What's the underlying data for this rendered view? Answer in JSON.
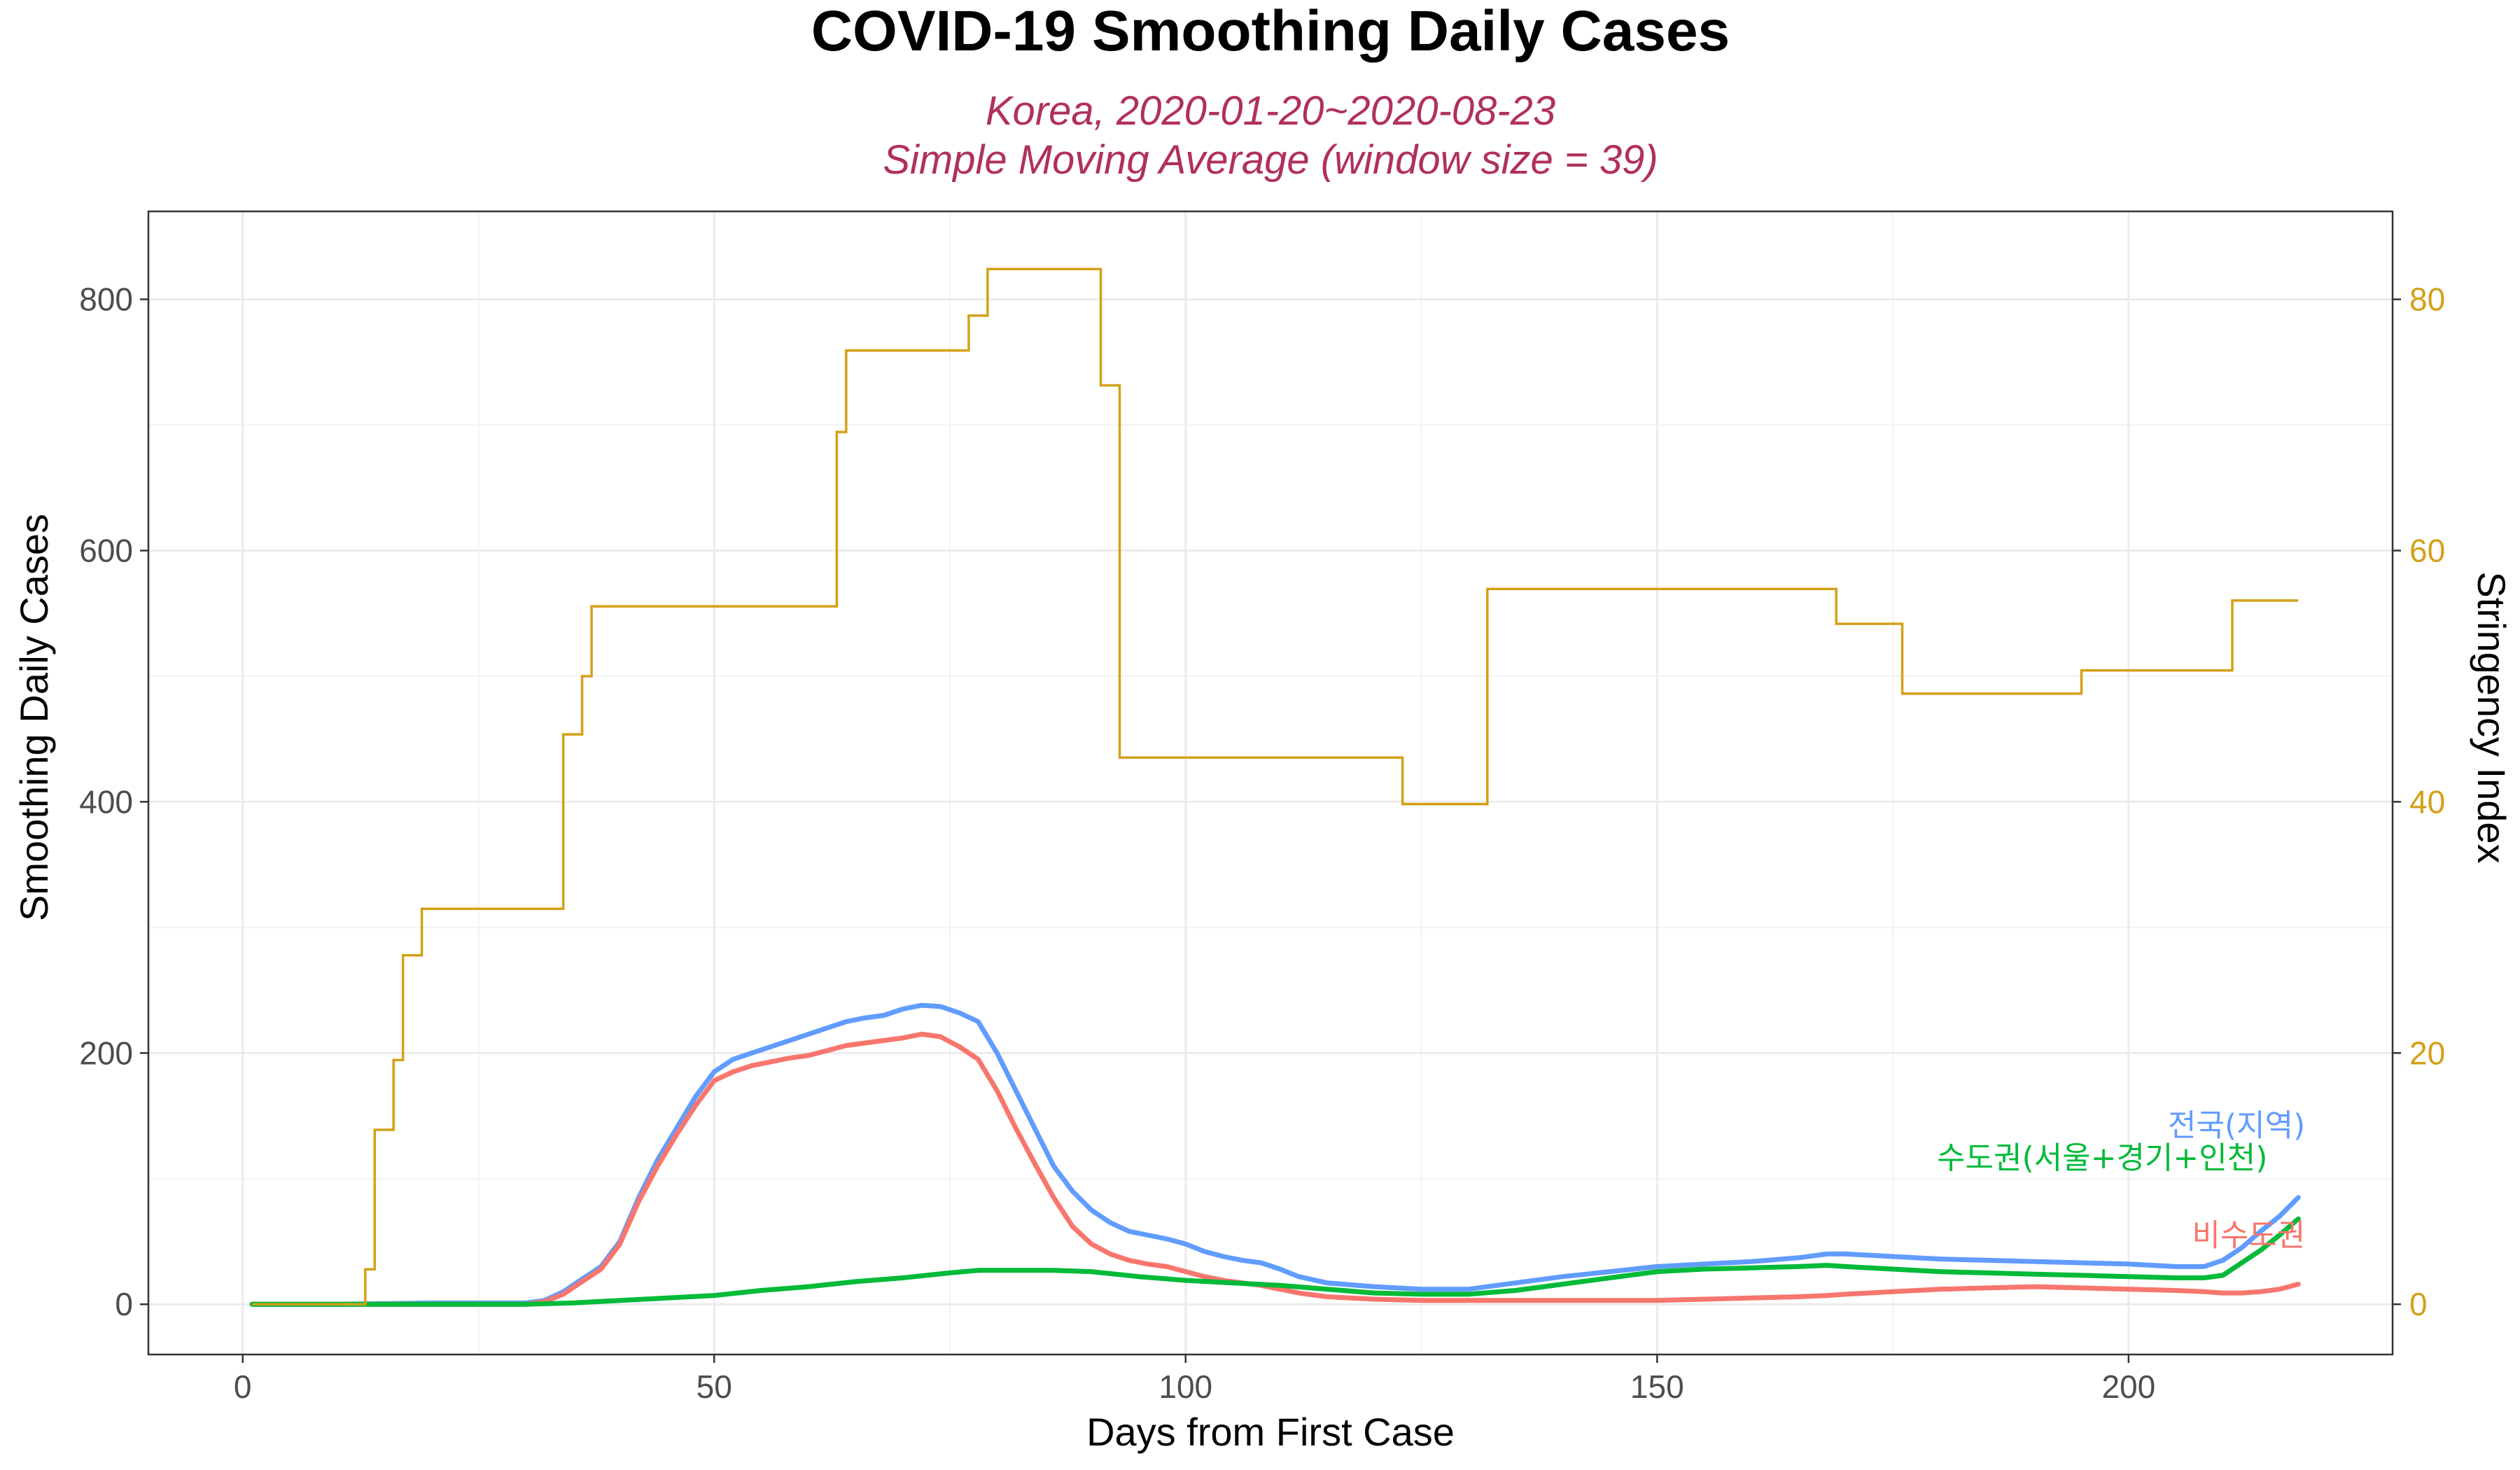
{
  "chart_data": {
    "type": "line",
    "title": "COVID-19 Smoothing Daily Cases",
    "subtitle_lines": [
      "Korea, 2020-01-20~2020-08-23",
      "Simple Moving Average (window size = 39)"
    ],
    "xlabel": "Days from First Case",
    "ylabel": "Smoothing Daily Cases",
    "y2label": "Stringency Index",
    "xlim": [
      -10,
      228
    ],
    "ylim": [
      -40,
      870
    ],
    "y2lim": [
      -4,
      87
    ],
    "x_ticks": [
      0,
      50,
      100,
      150,
      200
    ],
    "y_ticks": [
      0,
      200,
      400,
      600,
      800
    ],
    "y2_ticks": [
      0,
      20,
      40,
      60,
      80
    ],
    "grid": true,
    "colors": {
      "national": "#619CFF",
      "capital": "#00BA38",
      "noncapital": "#F8766D",
      "stringency": "#D4A017",
      "subtitle": "#B03060",
      "y2_axis": "#D4A017"
    },
    "series": [
      {
        "key": "national",
        "name": "전국(지역)",
        "axis": "left",
        "x": [
          1,
          10,
          20,
          30,
          32,
          34,
          36,
          38,
          40,
          42,
          44,
          46,
          48,
          50,
          52,
          54,
          56,
          58,
          60,
          62,
          64,
          66,
          68,
          70,
          72,
          74,
          76,
          78,
          80,
          82,
          84,
          86,
          88,
          90,
          92,
          94,
          96,
          98,
          100,
          102,
          104,
          106,
          108,
          110,
          112,
          115,
          120,
          125,
          130,
          135,
          140,
          145,
          150,
          155,
          160,
          165,
          168,
          170,
          175,
          180,
          185,
          190,
          195,
          200,
          205,
          208,
          210,
          212,
          214,
          216,
          218
        ],
        "y": [
          0,
          0,
          1,
          1,
          3,
          10,
          20,
          30,
          50,
          85,
          115,
          140,
          165,
          185,
          195,
          200,
          205,
          210,
          215,
          220,
          225,
          228,
          230,
          235,
          238,
          237,
          232,
          225,
          200,
          170,
          140,
          110,
          90,
          75,
          65,
          58,
          55,
          52,
          48,
          42,
          38,
          35,
          33,
          28,
          22,
          17,
          14,
          12,
          12,
          17,
          22,
          26,
          30,
          32,
          34,
          37,
          40,
          40,
          38,
          36,
          35,
          34,
          33,
          32,
          30,
          30,
          35,
          45,
          58,
          70,
          85
        ]
      },
      {
        "key": "noncapital",
        "name": "비수도권",
        "axis": "left",
        "x": [
          1,
          10,
          20,
          30,
          32,
          34,
          36,
          38,
          40,
          42,
          44,
          46,
          48,
          50,
          52,
          54,
          56,
          58,
          60,
          62,
          64,
          66,
          68,
          70,
          72,
          74,
          76,
          78,
          80,
          82,
          84,
          86,
          88,
          90,
          92,
          94,
          96,
          98,
          100,
          102,
          104,
          106,
          108,
          110,
          112,
          115,
          120,
          125,
          130,
          135,
          140,
          145,
          150,
          155,
          160,
          165,
          168,
          170,
          175,
          180,
          185,
          190,
          195,
          200,
          205,
          208,
          210,
          212,
          214,
          216,
          218
        ],
        "y": [
          0,
          0,
          0,
          0,
          2,
          8,
          18,
          28,
          48,
          82,
          110,
          135,
          158,
          178,
          185,
          190,
          193,
          196,
          198,
          202,
          206,
          208,
          210,
          212,
          215,
          213,
          205,
          195,
          170,
          140,
          112,
          85,
          62,
          48,
          40,
          35,
          32,
          30,
          26,
          22,
          19,
          17,
          15,
          12,
          9,
          6,
          4,
          3,
          3,
          3,
          3,
          3,
          3,
          4,
          5,
          6,
          7,
          8,
          10,
          12,
          13,
          14,
          13,
          12,
          11,
          10,
          9,
          9,
          10,
          12,
          16
        ]
      },
      {
        "key": "capital",
        "name": "수도권(서울+경기+인천)",
        "axis": "left",
        "x": [
          1,
          10,
          20,
          30,
          35,
          40,
          45,
          50,
          55,
          60,
          65,
          70,
          75,
          78,
          82,
          86,
          90,
          95,
          100,
          105,
          110,
          115,
          120,
          125,
          130,
          135,
          140,
          145,
          150,
          155,
          160,
          165,
          168,
          170,
          175,
          180,
          185,
          190,
          195,
          200,
          205,
          208,
          210,
          212,
          214,
          216,
          218
        ],
        "y": [
          0,
          0,
          0,
          0,
          1,
          3,
          5,
          7,
          11,
          14,
          18,
          21,
          25,
          27,
          27,
          27,
          26,
          22,
          19,
          17,
          15,
          12,
          9,
          8,
          8,
          11,
          16,
          21,
          26,
          28,
          29,
          30,
          31,
          30,
          28,
          26,
          25,
          24,
          23,
          22,
          21,
          21,
          23,
          33,
          43,
          55,
          68
        ]
      },
      {
        "key": "stringency",
        "name": "Stringency Index",
        "axis": "right",
        "step_x": [
          1,
          13,
          14,
          16,
          17,
          19,
          34,
          36,
          37,
          63,
          64,
          77,
          79,
          91,
          93,
          123,
          132,
          169,
          176,
          195,
          211,
          218
        ],
        "step_y": [
          0,
          2.78,
          13.89,
          19.44,
          27.78,
          31.48,
          45.37,
          50.0,
          55.56,
          69.44,
          75.93,
          78.7,
          82.41,
          73.15,
          43.52,
          39.81,
          56.94,
          54.17,
          48.61,
          50.46,
          56.02,
          56.02
        ]
      }
    ],
    "annotations": [
      {
        "text": "전국(지역)",
        "series": "national"
      },
      {
        "text": "수도권(서울+경기+인천)",
        "series": "capital"
      },
      {
        "text": "비수도권",
        "series": "noncapital"
      }
    ]
  }
}
